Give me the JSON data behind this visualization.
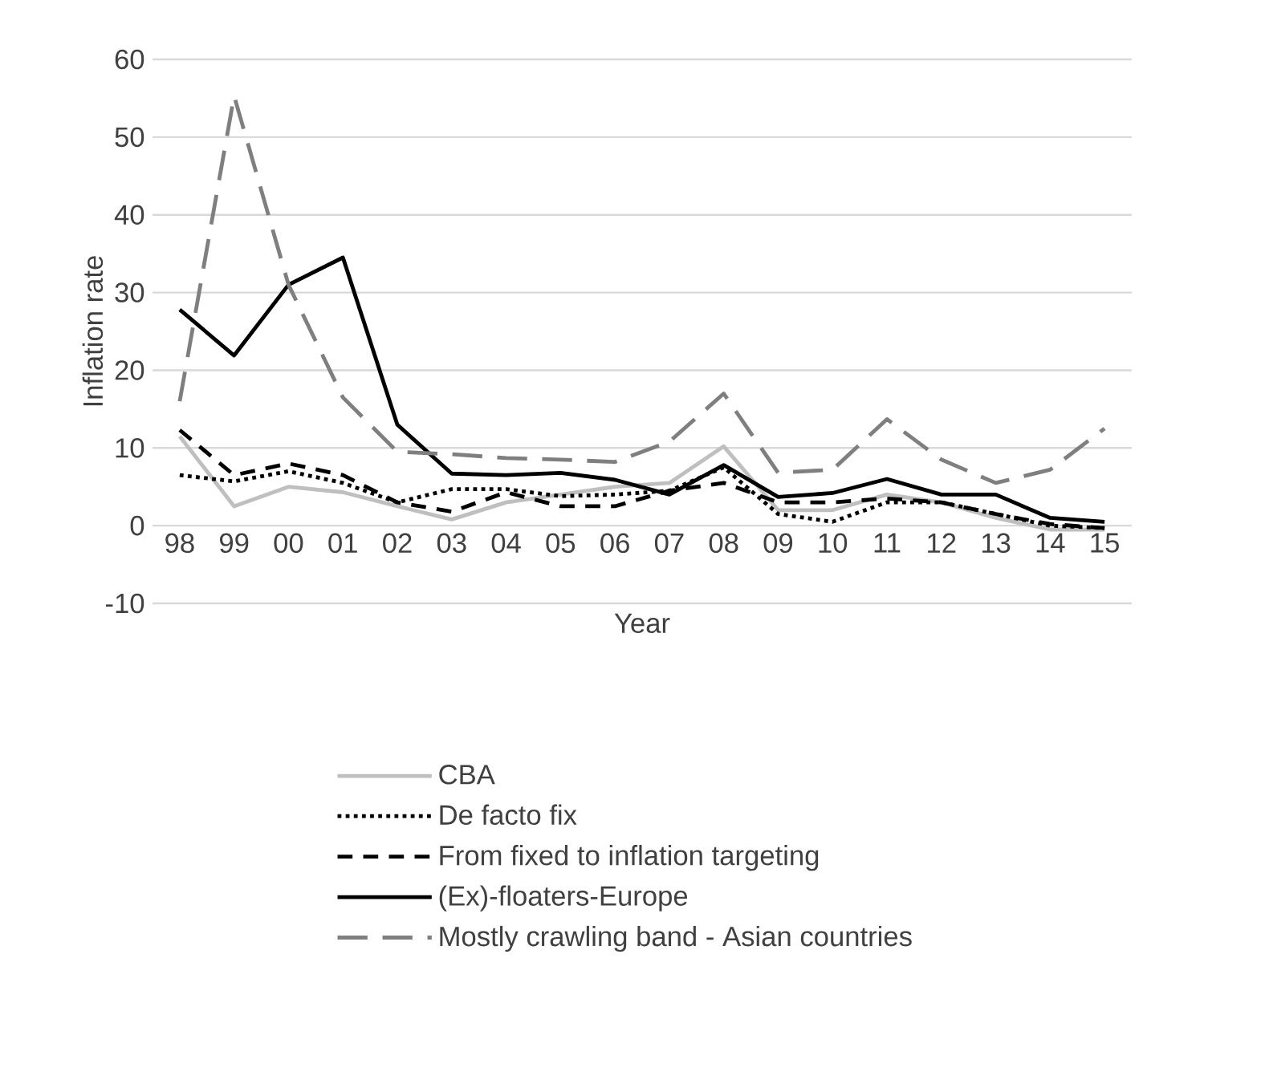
{
  "chart_data": {
    "type": "line",
    "xlabel": "Year",
    "ylabel": "Inflation rate",
    "categories": [
      "98",
      "99",
      "00",
      "01",
      "02",
      "03",
      "04",
      "05",
      "06",
      "07",
      "08",
      "09",
      "10",
      "11",
      "12",
      "13",
      "14",
      "15"
    ],
    "ylim": [
      -10,
      60
    ],
    "yticks": [
      -10,
      0,
      10,
      20,
      30,
      40,
      50,
      60
    ],
    "grid": "y",
    "legend": "bottom",
    "series": [
      {
        "name": "CBA",
        "color": "#bfbfbf",
        "line_style": "solid",
        "values": [
          11.5,
          2.5,
          5,
          4.3,
          2.5,
          0.8,
          3,
          4,
          5,
          5.5,
          10.2,
          2,
          2,
          4,
          3,
          1,
          -0.5,
          -0.5
        ]
      },
      {
        "name": "De facto fix",
        "color": "#000000",
        "line_style": "dotted",
        "values": [
          6.5,
          5.7,
          7,
          5.5,
          3,
          4.7,
          4.7,
          3.8,
          4,
          4.5,
          7.5,
          1.5,
          0.5,
          3,
          3,
          1.5,
          0,
          -0.3
        ]
      },
      {
        "name": "From fixed to inflation targeting",
        "color": "#000000",
        "line_style": "dashed",
        "values": [
          12.3,
          6.5,
          8,
          6.5,
          3,
          1.8,
          4.3,
          2.5,
          2.5,
          4.5,
          5.5,
          3,
          3,
          3.5,
          3,
          1.5,
          0.2,
          -0.3
        ]
      },
      {
        "name": "(Ex)-floaters-Europe",
        "color": "#000000",
        "line_style": "solid",
        "values": [
          27.8,
          21.9,
          31,
          34.5,
          13,
          6.7,
          6.5,
          6.8,
          5.9,
          4,
          7.8,
          3.7,
          4.2,
          6,
          4,
          4,
          1,
          0.5
        ]
      },
      {
        "name": "Mostly crawling band - Asian countries",
        "color": "#7f7f7f",
        "line_style": "longdash",
        "values": [
          16,
          55.3,
          31,
          16.5,
          9.5,
          9.2,
          8.7,
          8.5,
          8.2,
          10.8,
          17,
          6.8,
          7.2,
          13.7,
          8.5,
          5.5,
          7.2,
          12.5
        ]
      }
    ]
  }
}
